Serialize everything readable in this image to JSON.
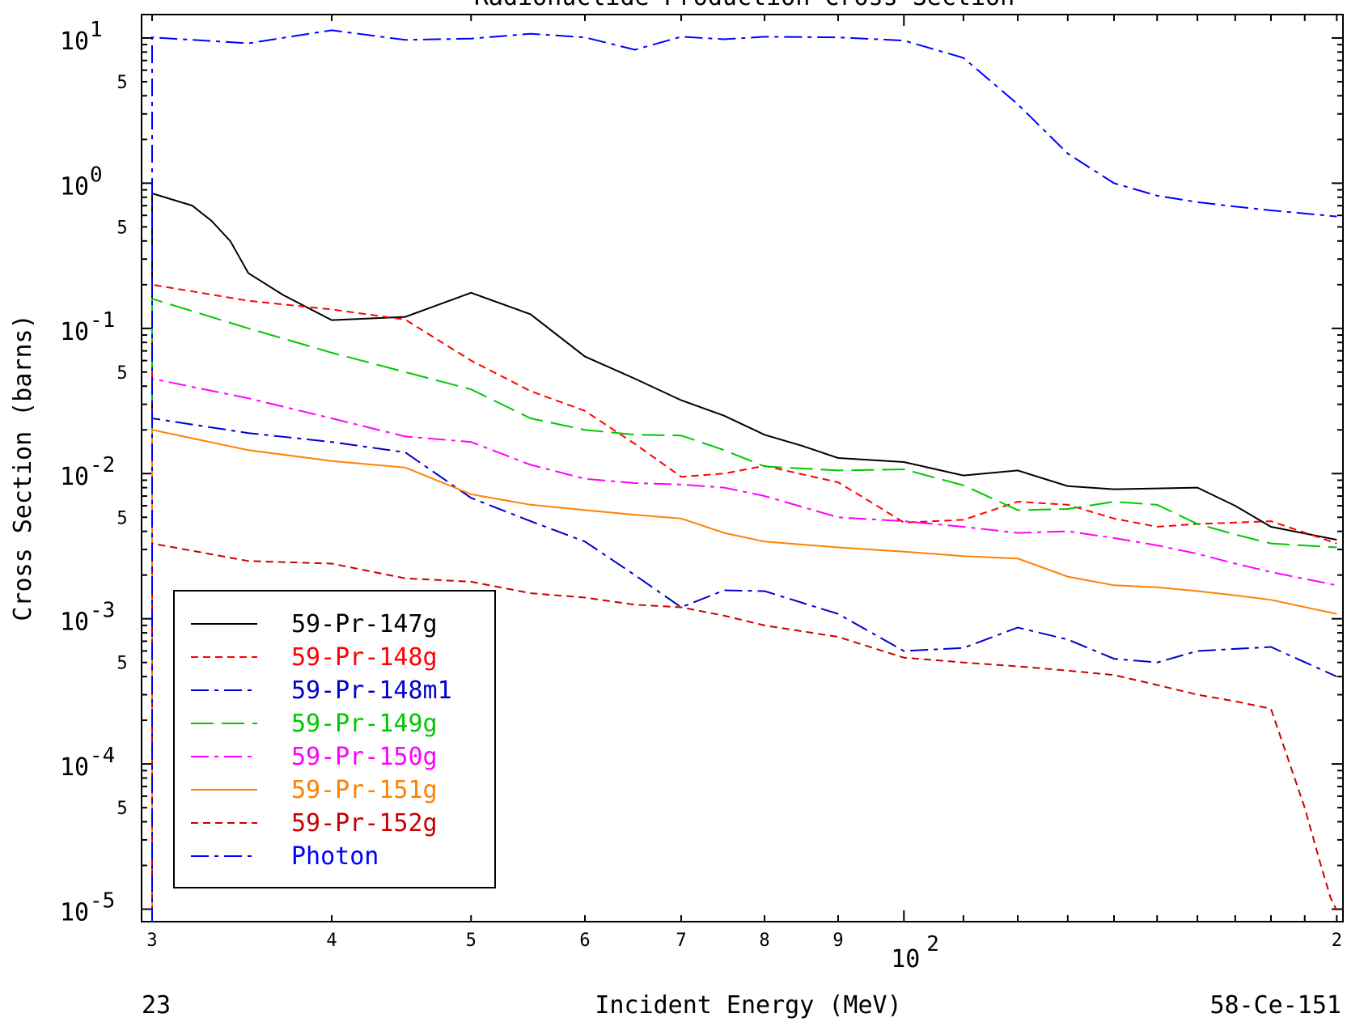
{
  "chart_data": {
    "type": "line",
    "title": "Radionuclide Production Cross Section",
    "xlabel": "Incident Energy (MeV)",
    "ylabel": "Cross Section (barns)",
    "x_scale": "log",
    "y_scale": "log",
    "xlim": [
      29.5,
      202
    ],
    "ylim": [
      8.2e-06,
      14.5
    ],
    "x_tick_labels": [
      {
        "value": 30,
        "label": "3"
      },
      {
        "value": 40,
        "label": "4"
      },
      {
        "value": 50,
        "label": "5"
      },
      {
        "value": 60,
        "label": "6"
      },
      {
        "value": 70,
        "label": "7"
      },
      {
        "value": 80,
        "label": "8"
      },
      {
        "value": 90,
        "label": "9"
      },
      {
        "value": 100,
        "label": "10",
        "exponent": "2"
      },
      {
        "value": 200,
        "label": "2"
      }
    ],
    "y_tick_labels": [
      {
        "value": 10,
        "label": "10",
        "exponent": "1"
      },
      {
        "value": 5,
        "label": "5"
      },
      {
        "value": 1,
        "label": "10",
        "exponent": "0"
      },
      {
        "value": 0.5,
        "label": "5"
      },
      {
        "value": 0.1,
        "label": "10",
        "exponent": "-1"
      },
      {
        "value": 0.05,
        "label": "5"
      },
      {
        "value": 0.01,
        "label": "10",
        "exponent": "-2"
      },
      {
        "value": 0.005,
        "label": "5"
      },
      {
        "value": 0.001,
        "label": "10",
        "exponent": "-3"
      },
      {
        "value": 0.0005,
        "label": "5"
      },
      {
        "value": 0.0001,
        "label": "10",
        "exponent": "-4"
      },
      {
        "value": 5e-05,
        "label": "5"
      },
      {
        "value": 1e-05,
        "label": "10",
        "exponent": "-5"
      }
    ],
    "legend_position": "bottom-left",
    "grid": false,
    "series": [
      {
        "name": "59-Pr-147g",
        "color": "#000000",
        "dash": "solid",
        "x": [
          30,
          32,
          33,
          34,
          35,
          37,
          40,
          45,
          50,
          55,
          60,
          65,
          70,
          75,
          80,
          85,
          90,
          100,
          110,
          120,
          130,
          140,
          150,
          160,
          170,
          180,
          200
        ],
        "y": [
          0.85,
          0.7,
          0.55,
          0.4,
          0.24,
          0.17,
          0.114,
          0.12,
          0.176,
          0.125,
          0.064,
          0.045,
          0.032,
          0.025,
          0.0185,
          0.0155,
          0.0128,
          0.012,
          0.0097,
          0.0105,
          0.0082,
          0.0078,
          0.0079,
          0.008,
          0.006,
          0.0043,
          0.0035
        ]
      },
      {
        "name": "59-Pr-148g",
        "color": "#ff0000",
        "dash": "short",
        "x": [
          30,
          35,
          40,
          45,
          50,
          55,
          60,
          65,
          70,
          75,
          80,
          90,
          95,
          100,
          110,
          120,
          130,
          140,
          150,
          160,
          170,
          180,
          200
        ],
        "y": [
          0.2,
          0.155,
          0.135,
          0.115,
          0.06,
          0.037,
          0.027,
          0.016,
          0.0095,
          0.01,
          0.0113,
          0.0087,
          0.0063,
          0.0046,
          0.0048,
          0.0064,
          0.0061,
          0.0049,
          0.0043,
          0.0045,
          0.0046,
          0.0047,
          0.0033
        ]
      },
      {
        "name": "59-Pr-148m1",
        "color": "#0000c8",
        "dash": "dashdot",
        "x": [
          30,
          35,
          40,
          45,
          50,
          55,
          60,
          65,
          70,
          75,
          80,
          90,
          100,
          110,
          120,
          130,
          140,
          150,
          160,
          170,
          180,
          200
        ],
        "y": [
          0.024,
          0.019,
          0.0165,
          0.014,
          0.0068,
          0.0047,
          0.0034,
          0.002,
          0.0012,
          0.00157,
          0.00155,
          0.00108,
          0.0006,
          0.00063,
          0.00087,
          0.00072,
          0.00053,
          0.0005,
          0.0006,
          0.00062,
          0.00064,
          0.0004
        ]
      },
      {
        "name": "59-Pr-149g",
        "color": "#00c800",
        "dash": "longdash",
        "x": [
          30,
          35,
          40,
          45,
          50,
          55,
          60,
          65,
          70,
          75,
          80,
          90,
          100,
          110,
          120,
          130,
          140,
          150,
          160,
          170,
          180,
          200
        ],
        "y": [
          0.16,
          0.1,
          0.068,
          0.05,
          0.038,
          0.024,
          0.02,
          0.0185,
          0.0183,
          0.0145,
          0.0112,
          0.0105,
          0.0107,
          0.0083,
          0.0056,
          0.0057,
          0.0064,
          0.0061,
          0.0045,
          0.0038,
          0.0033,
          0.0031
        ]
      },
      {
        "name": "59-Pr-150g",
        "color": "#ff00ff",
        "dash": "dashdot",
        "x": [
          30,
          35,
          40,
          45,
          50,
          55,
          60,
          65,
          70,
          75,
          80,
          90,
          100,
          110,
          120,
          130,
          140,
          150,
          160,
          170,
          180,
          200
        ],
        "y": [
          0.045,
          0.033,
          0.024,
          0.018,
          0.0165,
          0.0115,
          0.0092,
          0.0086,
          0.0084,
          0.008,
          0.007,
          0.005,
          0.0047,
          0.0043,
          0.0039,
          0.004,
          0.0036,
          0.0032,
          0.0028,
          0.0024,
          0.0021,
          0.0017
        ]
      },
      {
        "name": "59-Pr-151g",
        "color": "#ff8000",
        "dash": "solid",
        "x": [
          30,
          35,
          40,
          45,
          50,
          55,
          60,
          65,
          70,
          75,
          80,
          90,
          100,
          110,
          120,
          130,
          140,
          150,
          160,
          170,
          180,
          200
        ],
        "y": [
          0.02,
          0.0145,
          0.0122,
          0.011,
          0.0072,
          0.0061,
          0.0056,
          0.0052,
          0.0049,
          0.0039,
          0.0034,
          0.0031,
          0.0029,
          0.0027,
          0.0026,
          0.00195,
          0.0017,
          0.00165,
          0.00155,
          0.00145,
          0.00135,
          0.00108
        ]
      },
      {
        "name": "59-Pr-152g",
        "color": "#c80000",
        "dash": "short",
        "x": [
          30,
          35,
          40,
          45,
          50,
          55,
          60,
          65,
          70,
          75,
          80,
          90,
          100,
          110,
          120,
          130,
          140,
          150,
          160,
          170,
          180,
          190,
          195,
          198,
          200
        ],
        "y": [
          0.0033,
          0.0025,
          0.0024,
          0.0019,
          0.0018,
          0.0015,
          0.0014,
          0.00125,
          0.0012,
          0.00105,
          0.0009,
          0.00075,
          0.00054,
          0.0005,
          0.00047,
          0.00044,
          0.00041,
          0.00035,
          0.0003,
          0.00027,
          0.00024,
          5e-05,
          2e-05,
          1.2e-05,
          9.8e-06
        ]
      },
      {
        "name": "Photon",
        "color": "#0000ff",
        "dash": "dashdot",
        "x": [
          30,
          35,
          40,
          45,
          50,
          55,
          60,
          65,
          70,
          75,
          80,
          90,
          100,
          110,
          120,
          130,
          140,
          150,
          160,
          170,
          180,
          200
        ],
        "y": [
          10.1,
          9.2,
          11.3,
          9.7,
          9.9,
          10.7,
          10.1,
          8.3,
          10.2,
          9.8,
          10.2,
          10.1,
          9.6,
          7.3,
          3.5,
          1.6,
          1.0,
          0.82,
          0.74,
          0.69,
          0.65,
          0.59
        ]
      }
    ]
  },
  "footer": {
    "left": "23",
    "right": "58-Ce-151"
  }
}
